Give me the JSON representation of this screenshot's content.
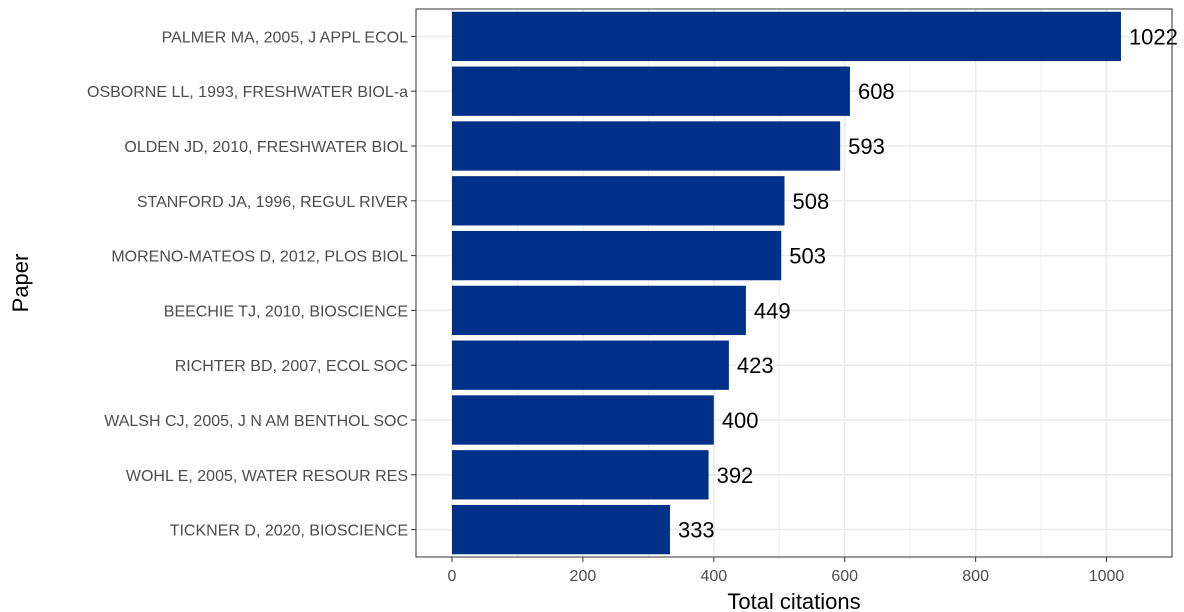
{
  "chart_data": {
    "type": "bar",
    "orientation": "horizontal",
    "categories": [
      "PALMER MA, 2005, J APPL ECOL",
      "OSBORNE LL, 1993, FRESHWATER BIOL-a",
      "OLDEN JD, 2010, FRESHWATER BIOL",
      "STANFORD JA, 1996, REGUL RIVER",
      "MORENO-MATEOS D, 2012, PLOS BIOL",
      "BEECHIE TJ, 2010, BIOSCIENCE",
      "RICHTER BD, 2007, ECOL SOC",
      "WALSH CJ, 2005, J N AM BENTHOL SOC",
      "WOHL E, 2005, WATER RESOUR RES",
      "TICKNER D, 2020, BIOSCIENCE"
    ],
    "values": [
      1022,
      608,
      593,
      508,
      503,
      449,
      423,
      400,
      392,
      333
    ],
    "value_labels": [
      "1022",
      "608",
      "593",
      "508",
      "503",
      "449",
      "423",
      "400",
      "392",
      "333"
    ],
    "xlabel": "Total citations",
    "ylabel": "Paper",
    "xlim": [
      -55,
      1100
    ],
    "xticks": [
      0,
      200,
      400,
      600,
      800,
      1000
    ],
    "xtick_labels": [
      "0",
      "200",
      "400",
      "600",
      "800",
      "1000"
    ],
    "grid": true,
    "bar_color": "#003087",
    "grid_color": "#ebebeb",
    "panel_border_color": "#333333"
  }
}
